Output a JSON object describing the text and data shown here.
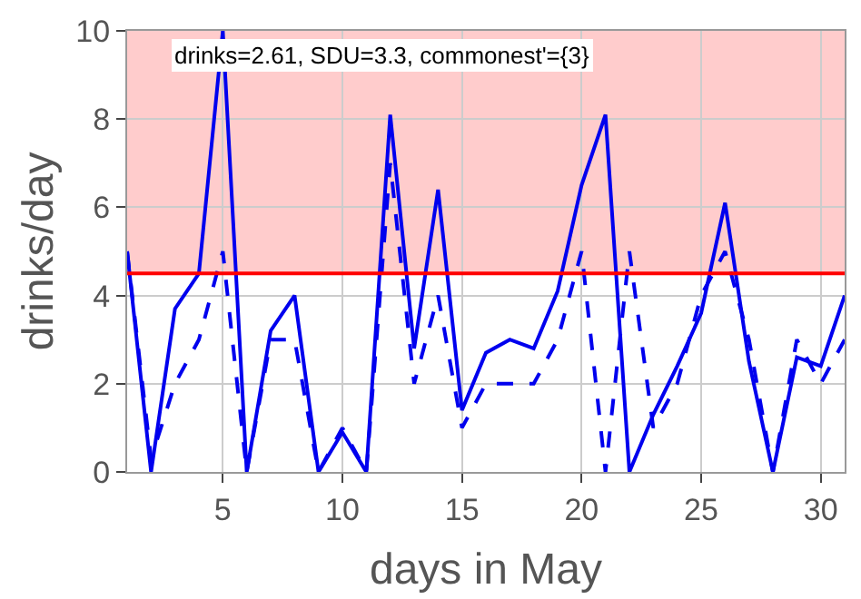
{
  "chart_data": {
    "type": "line",
    "xlabel": "days in May",
    "ylabel": "drinks/day",
    "x": [
      1,
      2,
      3,
      4,
      5,
      6,
      7,
      8,
      9,
      10,
      11,
      12,
      13,
      14,
      15,
      16,
      17,
      18,
      19,
      20,
      21,
      22,
      23,
      24,
      25,
      26,
      27,
      28,
      29,
      30,
      31
    ],
    "series": [
      {
        "color": "#0000ee",
        "line_style": "solid",
        "values": [
          5,
          0,
          3.7,
          4.5,
          10,
          0,
          3.2,
          4,
          0,
          0.9,
          0,
          8.1,
          2.8,
          6.4,
          1.4,
          2.7,
          3,
          2.8,
          4.1,
          6.5,
          8.1,
          0,
          1.3,
          2.4,
          3.6,
          6.1,
          2.5,
          0,
          2.6,
          2.4,
          4
        ]
      },
      {
        "color": "#0000ee",
        "line_style": "dashed",
        "values": [
          5,
          0.3,
          2,
          3,
          5,
          0,
          3,
          3,
          0,
          1,
          0,
          7,
          2,
          4,
          1,
          2,
          2,
          2,
          3,
          5,
          0,
          5,
          1,
          2,
          4,
          5,
          3,
          0,
          3,
          2,
          3
        ]
      }
    ],
    "xlim": [
      1,
      31
    ],
    "ylim": [
      0,
      10
    ],
    "xticks": [
      5,
      10,
      15,
      20,
      25,
      30
    ],
    "yticks": [
      0,
      2,
      4,
      6,
      8,
      10
    ],
    "grid": true,
    "ref_lines": [
      {
        "axis": "y",
        "value": 4.5,
        "color": "#ff0000"
      }
    ],
    "bands": [
      {
        "axis": "y",
        "from": 4.5,
        "to": 10,
        "color": "#ffcccc"
      }
    ],
    "annotations": [
      "drinks=2.61, SDU=3.3, commonest'={3}"
    ]
  }
}
